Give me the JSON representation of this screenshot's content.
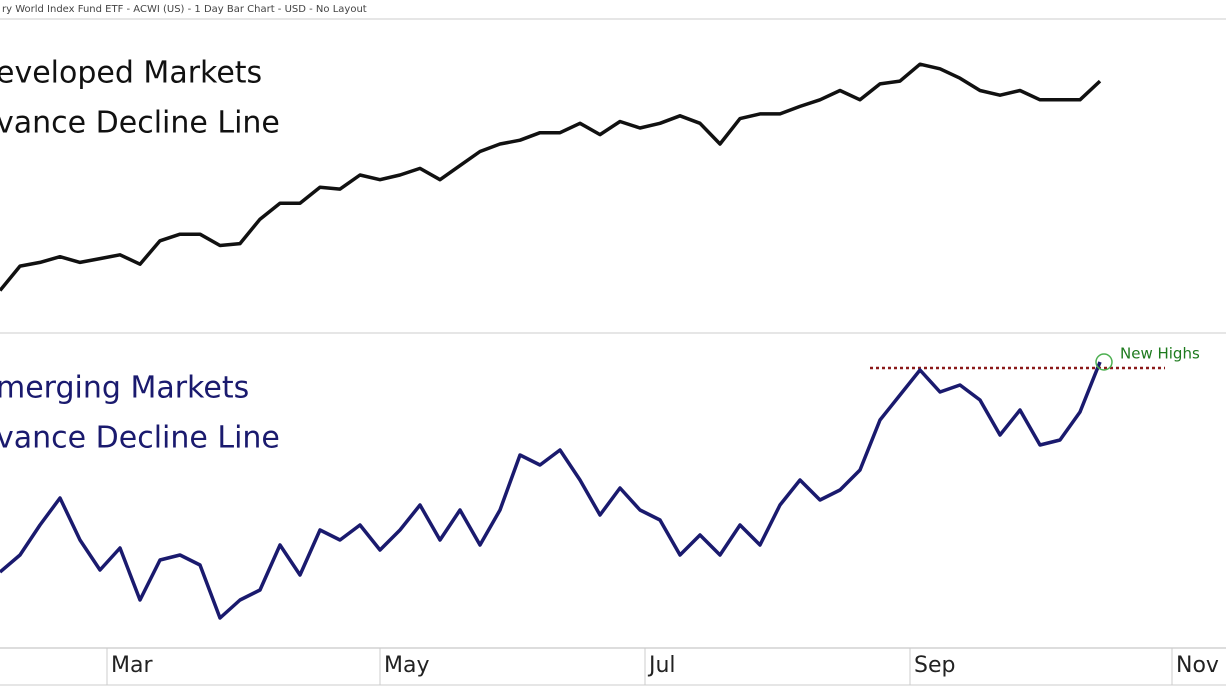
{
  "header": "ry World Index Fund ETF - ACWI (US) - 1 Day Bar Chart - USD - No Layout",
  "chart_data": [
    {
      "type": "line",
      "title": [
        "eveloped Markets",
        "vance Decline Line"
      ],
      "color": "#111111",
      "xlim": [
        0,
        61.3
      ],
      "ylim": [
        0,
        330
      ],
      "values": [
        42,
        68,
        72,
        78,
        72,
        76,
        80,
        70,
        95,
        102,
        102,
        90,
        92,
        118,
        135,
        135,
        152,
        150,
        165,
        160,
        165,
        172,
        160,
        175,
        190,
        198,
        202,
        210,
        210,
        220,
        208,
        222,
        215,
        220,
        228,
        220,
        198,
        225,
        230,
        230,
        238,
        245,
        255,
        245,
        262,
        265,
        283,
        278,
        268,
        255,
        250,
        255,
        245,
        245,
        245,
        265
      ]
    },
    {
      "type": "line",
      "title": [
        "merging Markets",
        "vance Decline Line"
      ],
      "color": "#1a1a6e",
      "xlim": [
        0,
        61.3
      ],
      "ylim": [
        0,
        310
      ],
      "values": [
        73,
        90,
        120,
        147,
        105,
        75,
        97,
        45,
        85,
        90,
        80,
        27,
        45,
        55,
        100,
        70,
        115,
        105,
        120,
        95,
        115,
        140,
        105,
        135,
        100,
        135,
        190,
        180,
        195,
        165,
        130,
        157,
        135,
        125,
        90,
        110,
        90,
        120,
        100,
        140,
        165,
        145,
        155,
        175,
        225,
        250,
        275,
        253,
        260,
        245,
        210,
        235,
        200,
        205,
        233,
        283
      ],
      "annotation": {
        "text": "New Highs",
        "value": 277,
        "xlim": [
          43.5,
          58.25
        ],
        "color": "#8b1a1a"
      },
      "xticks": [
        {
          "value": 5.35,
          "label": "Mar"
        },
        {
          "value": 19,
          "label": "May"
        },
        {
          "value": 32.25,
          "label": "Jul"
        },
        {
          "value": 45.5,
          "label": "Sep"
        },
        {
          "value": 58.6,
          "label": "Nov"
        }
      ]
    }
  ]
}
